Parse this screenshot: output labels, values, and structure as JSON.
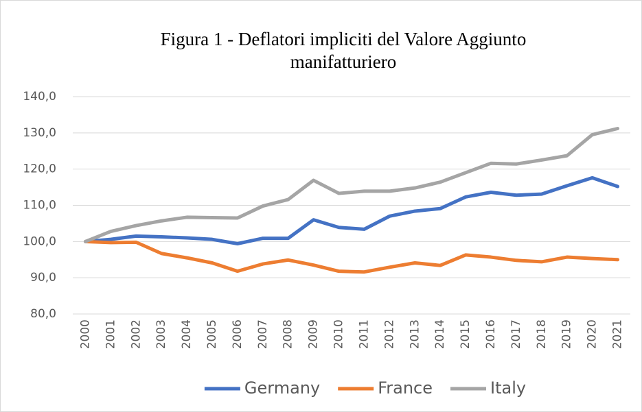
{
  "chart_data": {
    "type": "line",
    "title": "Figura 1 - Deflatori impliciti del Valore Aggiunto manifatturiero",
    "categories": [
      "2000",
      "2001",
      "2002",
      "2003",
      "2004",
      "2005",
      "2006",
      "2007",
      "2008",
      "2009",
      "2010",
      "2011",
      "2012",
      "2013",
      "2014",
      "2015",
      "2016",
      "2017",
      "2018",
      "2019",
      "2020",
      "2021"
    ],
    "series": [
      {
        "name": "Germany",
        "color": "#4472c4",
        "values": [
          100,
          100.6,
          101.5,
          101.3,
          101.0,
          100.6,
          99.4,
          100.9,
          100.9,
          106.0,
          103.9,
          103.4,
          107.0,
          108.4,
          109.1,
          112.3,
          113.6,
          112.8,
          113.1,
          115.4,
          117.6,
          115.2
        ]
      },
      {
        "name": "France",
        "color": "#ed7d31",
        "values": [
          100,
          99.7,
          99.8,
          96.7,
          95.5,
          94.1,
          91.8,
          93.8,
          94.9,
          93.5,
          91.8,
          91.6,
          92.9,
          94.1,
          93.4,
          96.3,
          95.7,
          94.8,
          94.4,
          95.7,
          95.3,
          95.0
        ]
      },
      {
        "name": "Italy",
        "color": "#a5a5a5",
        "values": [
          100,
          102.8,
          104.4,
          105.7,
          106.7,
          106.6,
          106.5,
          109.8,
          111.6,
          116.9,
          113.3,
          113.9,
          113.9,
          114.8,
          116.4,
          119.0,
          121.6,
          121.4,
          122.5,
          123.7,
          129.5,
          131.2
        ]
      }
    ],
    "ylim": [
      80,
      140
    ],
    "yticks": [
      {
        "value": 80,
        "label": "80,0"
      },
      {
        "value": 90,
        "label": "90,0"
      },
      {
        "value": 100,
        "label": "100,0"
      },
      {
        "value": 110,
        "label": "110,0"
      },
      {
        "value": 120,
        "label": "120,0"
      },
      {
        "value": 130,
        "label": "130,0"
      },
      {
        "value": 140,
        "label": "140,0"
      }
    ],
    "grid": true,
    "legend": "bottom"
  }
}
